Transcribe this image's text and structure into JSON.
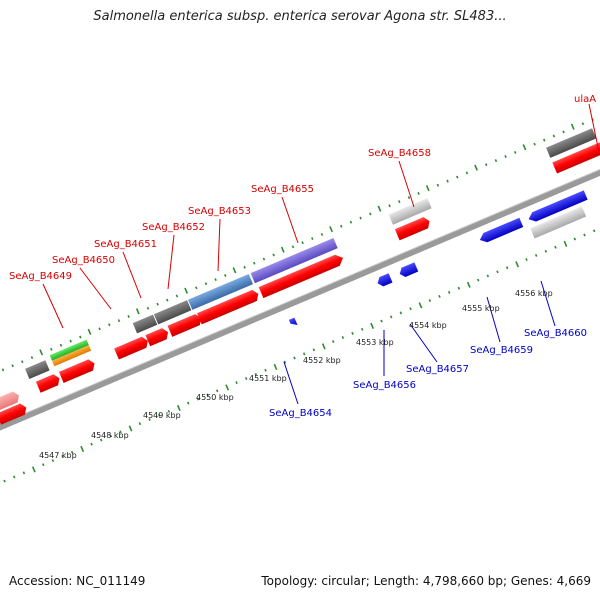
{
  "title": "Salmonella enterica subsp. enterica serovar Agona str. SL483...",
  "footer": {
    "accession": "Accession: NC_011149",
    "summary": "Topology: circular; Length: 4,798,660 bp; Genes: 4,669"
  },
  "colors": {
    "backbone": "#9a9a9a",
    "tick": "#2e8b2e",
    "red": "#ff0000",
    "blue": "#1010e0",
    "label_red": "#d80000",
    "label_blue": "#0000c8"
  },
  "scale_labels": [
    "4547 kbp",
    "4548 kbp",
    "4549 kbp",
    "4550 kbp",
    "4551 kbp",
    "4552 kbp",
    "4553 kbp",
    "4554 kbp",
    "4555 kbp",
    "4556 kbp"
  ],
  "forward_labels": [
    "SeAg_B4649",
    "SeAg_B4650",
    "SeAg_B4651",
    "SeAg_B4652",
    "SeAg_B4653",
    "SeAg_B4655",
    "SeAg_B4658",
    "ulaA"
  ],
  "reverse_labels": [
    "SeAg_B4654",
    "SeAg_B4656",
    "SeAg_B4657",
    "SeAg_B4659",
    "SeAg_B4660"
  ]
}
